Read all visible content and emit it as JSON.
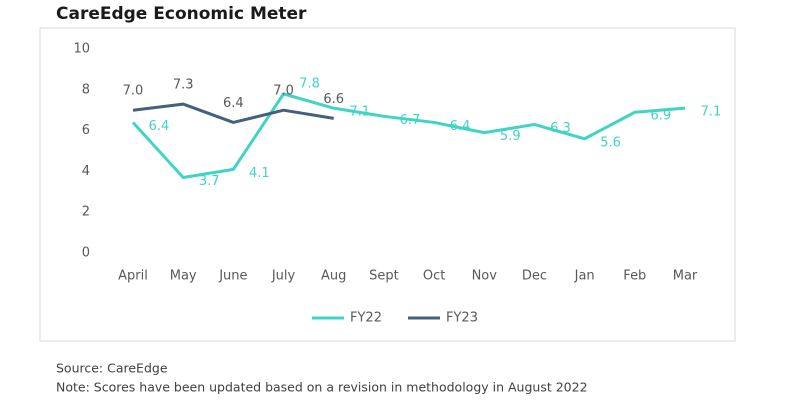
{
  "chart_data": {
    "type": "line",
    "title": "CareEdge Economic Meter",
    "categories": [
      "April",
      "May",
      "June",
      "July",
      "Aug",
      "Sept",
      "Oct",
      "Nov",
      "Dec",
      "Jan",
      "Feb",
      "Mar"
    ],
    "series": [
      {
        "name": "FY22",
        "color": "#3fd4c4",
        "values": [
          6.4,
          3.7,
          4.1,
          7.8,
          7.1,
          6.7,
          6.4,
          5.9,
          6.3,
          5.6,
          6.9,
          7.1
        ]
      },
      {
        "name": "FY23",
        "color": "#44607e",
        "values": [
          7,
          7.3,
          6.4,
          7,
          6.6,
          null,
          null,
          null,
          null,
          null,
          null,
          null
        ],
        "value_labels": [
          "7.0",
          "7.3",
          "6.4",
          "7.0",
          "6.6",
          null,
          null,
          null,
          null,
          null,
          null,
          null
        ]
      }
    ],
    "ylim": [
      0,
      10
    ],
    "yticks": [
      0,
      2,
      4,
      6,
      8,
      10
    ],
    "grid": false,
    "legend": "bottom",
    "source": "Source: CareEdge",
    "note": "Note: Scores have been updated based on a revision in methodology in August 2022"
  }
}
